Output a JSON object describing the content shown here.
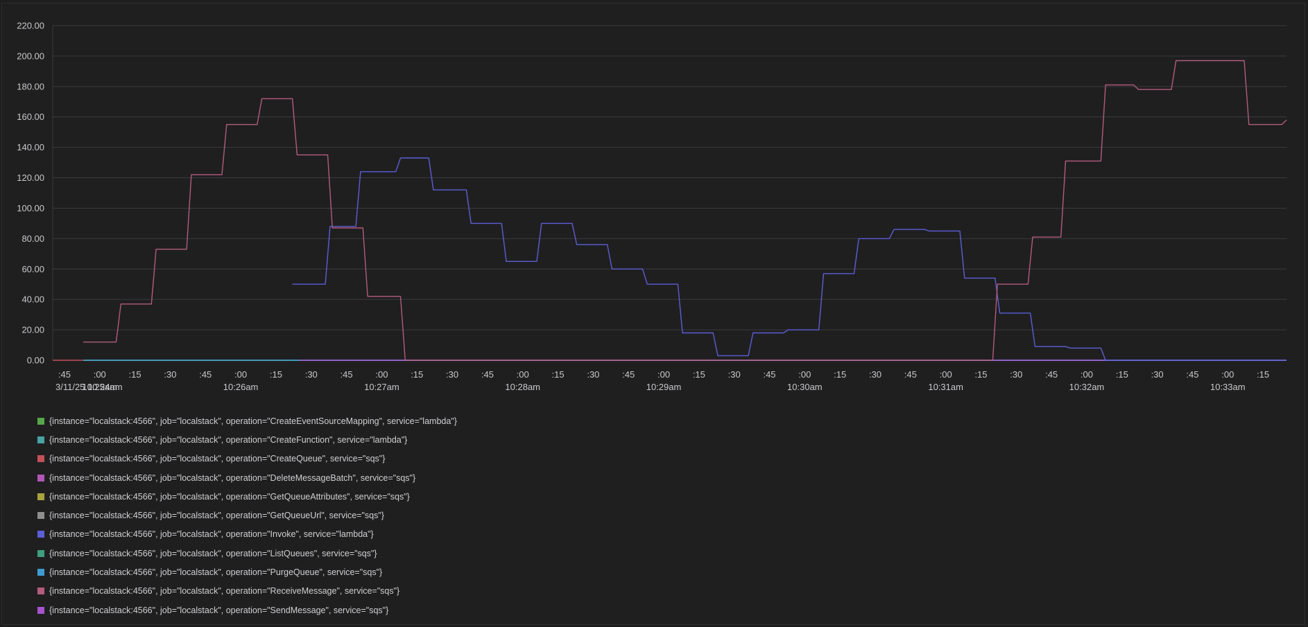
{
  "chart_data": {
    "type": "line",
    "grid": true,
    "legend_position": "bottom",
    "ylim": [
      0,
      220
    ],
    "y_ticks": [
      "0.00",
      "20.00",
      "40.00",
      "60.00",
      "80.00",
      "100.00",
      "120.00",
      "140.00",
      "160.00",
      "180.00",
      "200.00",
      "220.00"
    ],
    "x_range": [
      "10:24:40",
      "10:33:25"
    ],
    "x_ticks": [
      {
        "t": "10:24:45",
        "label": ":45"
      },
      {
        "t": "10:25:00",
        "label": ":00",
        "sub": "10:25am"
      },
      {
        "t": "10:25:15",
        "label": ":15"
      },
      {
        "t": "10:25:30",
        "label": ":30"
      },
      {
        "t": "10:25:45",
        "label": ":45"
      },
      {
        "t": "10:26:00",
        "label": ":00",
        "sub": "10:26am"
      },
      {
        "t": "10:26:15",
        "label": ":15"
      },
      {
        "t": "10:26:30",
        "label": ":30"
      },
      {
        "t": "10:26:45",
        "label": ":45"
      },
      {
        "t": "10:27:00",
        "label": ":00",
        "sub": "10:27am"
      },
      {
        "t": "10:27:15",
        "label": ":15"
      },
      {
        "t": "10:27:30",
        "label": ":30"
      },
      {
        "t": "10:27:45",
        "label": ":45"
      },
      {
        "t": "10:28:00",
        "label": ":00",
        "sub": "10:28am"
      },
      {
        "t": "10:28:15",
        "label": ":15"
      },
      {
        "t": "10:28:30",
        "label": ":30"
      },
      {
        "t": "10:28:45",
        "label": ":45"
      },
      {
        "t": "10:29:00",
        "label": ":00",
        "sub": "10:29am"
      },
      {
        "t": "10:29:15",
        "label": ":15"
      },
      {
        "t": "10:29:30",
        "label": ":30"
      },
      {
        "t": "10:29:45",
        "label": ":45"
      },
      {
        "t": "10:30:00",
        "label": ":00",
        "sub": "10:30am"
      },
      {
        "t": "10:30:15",
        "label": ":15"
      },
      {
        "t": "10:30:30",
        "label": ":30"
      },
      {
        "t": "10:30:45",
        "label": ":45"
      },
      {
        "t": "10:31:00",
        "label": ":00",
        "sub": "10:31am"
      },
      {
        "t": "10:31:15",
        "label": ":15"
      },
      {
        "t": "10:31:30",
        "label": ":30"
      },
      {
        "t": "10:31:45",
        "label": ":45"
      },
      {
        "t": "10:32:00",
        "label": ":00",
        "sub": "10:32am"
      },
      {
        "t": "10:32:15",
        "label": ":15"
      },
      {
        "t": "10:32:30",
        "label": ":30"
      },
      {
        "t": "10:32:45",
        "label": ":45"
      },
      {
        "t": "10:33:00",
        "label": ":00",
        "sub": "10:33am"
      },
      {
        "t": "10:33:15",
        "label": ":15"
      }
    ],
    "start_label": "3/11/25 10:24am",
    "series": [
      {
        "name": "{instance=\"localstack:4566\", job=\"localstack\", operation=\"CreateEventSourceMapping\", service=\"lambda\"}",
        "color": "#56a64b",
        "x": [
          "10:24:53",
          "10:33:25"
        ],
        "y": [
          0,
          0
        ]
      },
      {
        "name": "{instance=\"localstack:4566\", job=\"localstack\", operation=\"CreateFunction\", service=\"lambda\"}",
        "color": "#4aa3a1",
        "x": [
          "10:24:53",
          "10:33:25"
        ],
        "y": [
          0,
          0
        ]
      },
      {
        "name": "{instance=\"localstack:4566\", job=\"localstack\", operation=\"CreateQueue\", service=\"sqs\"}",
        "color": "#c4505a",
        "x": [
          "10:24:40",
          "10:24:53"
        ],
        "y": [
          0,
          0
        ]
      },
      {
        "name": "{instance=\"localstack:4566\", job=\"localstack\", operation=\"DeleteMessageBatch\", service=\"sqs\"}",
        "color": "#b255b6",
        "x": [
          "10:26:25",
          "10:33:25"
        ],
        "y": [
          0,
          0
        ]
      },
      {
        "name": "{instance=\"localstack:4566\", job=\"localstack\", operation=\"GetQueueAttributes\", service=\"sqs\"}",
        "color": "#a8a33a",
        "x": [
          "10:24:53",
          "10:26:22"
        ],
        "y": [
          0,
          0
        ]
      },
      {
        "name": "{instance=\"localstack:4566\", job=\"localstack\", operation=\"GetQueueUrl\", service=\"sqs\"}",
        "color": "#8e8e8e",
        "x": [
          "10:24:53",
          "10:33:25"
        ],
        "y": [
          0,
          0
        ]
      },
      {
        "name": "{instance=\"localstack:4566\", job=\"localstack\", operation=\"Invoke\", service=\"lambda\"}",
        "color": "#5b5fd6",
        "x": [
          "10:26:22",
          "10:26:36",
          "10:26:38",
          "10:26:49",
          "10:26:51",
          "10:27:06",
          "10:27:08",
          "10:27:20",
          "10:27:22",
          "10:27:36",
          "10:27:38",
          "10:27:51",
          "10:27:53",
          "10:28:06",
          "10:28:08",
          "10:28:21",
          "10:28:23",
          "10:28:36",
          "10:28:38",
          "10:28:51",
          "10:28:53",
          "10:29:06",
          "10:29:08",
          "10:29:21",
          "10:29:23",
          "10:29:36",
          "10:29:38",
          "10:29:51",
          "10:29:53",
          "10:30:06",
          "10:30:08",
          "10:30:21",
          "10:30:23",
          "10:30:36",
          "10:30:38",
          "10:30:51",
          "10:30:53",
          "10:31:06",
          "10:31:08",
          "10:31:21",
          "10:31:23",
          "10:31:36",
          "10:31:38",
          "10:31:51",
          "10:31:53",
          "10:32:06",
          "10:32:08",
          "10:33:25"
        ],
        "y": [
          50,
          50,
          88,
          88,
          124,
          124,
          133,
          133,
          112,
          112,
          90,
          90,
          65,
          65,
          90,
          90,
          76,
          76,
          60,
          60,
          50,
          50,
          18,
          18,
          3,
          3,
          18,
          18,
          20,
          20,
          57,
          57,
          80,
          80,
          86,
          86,
          85,
          85,
          54,
          54,
          31,
          31,
          9,
          9,
          8,
          8,
          0,
          0
        ]
      },
      {
        "name": "{instance=\"localstack:4566\", job=\"localstack\", operation=\"ListQueues\", service=\"sqs\"}",
        "color": "#3d9e7f",
        "x": [
          "10:24:53",
          "10:33:25"
        ],
        "y": [
          0,
          0
        ]
      },
      {
        "name": "{instance=\"localstack:4566\", job=\"localstack\", operation=\"PurgeQueue\", service=\"sqs\"}",
        "color": "#3e9bd2",
        "x": [
          "10:24:53",
          "10:33:25"
        ],
        "y": [
          0,
          0
        ]
      },
      {
        "name": "{instance=\"localstack:4566\", job=\"localstack\", operation=\"ReceiveMessage\", service=\"sqs\"}",
        "color": "#b35c7c",
        "x": [
          "10:24:53",
          "10:25:07",
          "10:25:09",
          "10:25:22",
          "10:25:24",
          "10:25:37",
          "10:25:39",
          "10:25:52",
          "10:25:54",
          "10:26:07",
          "10:26:09",
          "10:26:22",
          "10:26:24",
          "10:26:37",
          "10:26:39",
          "10:26:52",
          "10:26:54",
          "10:27:08",
          "10:27:10",
          "10:31:20",
          "10:31:22",
          "10:31:35",
          "10:31:37",
          "10:31:49",
          "10:31:51",
          "10:32:06",
          "10:32:08",
          "10:32:20",
          "10:32:22",
          "10:32:36",
          "10:32:38",
          "10:33:07",
          "10:33:09",
          "10:33:23",
          "10:33:25"
        ],
        "y": [
          12,
          12,
          37,
          37,
          73,
          73,
          122,
          122,
          155,
          155,
          172,
          172,
          135,
          135,
          87,
          87,
          42,
          42,
          0,
          0,
          50,
          50,
          81,
          81,
          131,
          131,
          181,
          181,
          178,
          178,
          197,
          197,
          155,
          155,
          158
        ]
      },
      {
        "name": "{instance=\"localstack:4566\", job=\"localstack\", operation=\"SendMessage\", service=\"sqs\"}",
        "color": "#a752d1",
        "x": [
          "10:26:25",
          "10:33:25"
        ],
        "y": [
          0,
          0
        ]
      }
    ]
  }
}
